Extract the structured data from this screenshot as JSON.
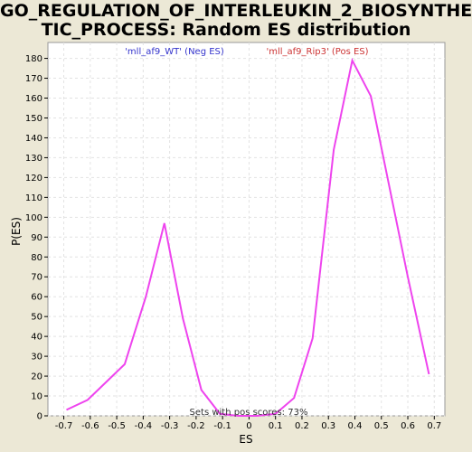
{
  "chart_data": {
    "type": "line",
    "title_line1": "GO_REGULATION_OF_INTERLEUKIN_2_BIOSYNTHE",
    "title_line2": "TIC_PROCESS: Random ES distribution",
    "xlabel": "ES",
    "ylabel": "P(ES)",
    "xlim": [
      -0.76,
      0.74
    ],
    "ylim": [
      0,
      188
    ],
    "xticks": [
      -0.7,
      -0.6,
      -0.5,
      -0.4,
      -0.3,
      -0.2,
      -0.1,
      0,
      0.1,
      0.2,
      0.3,
      0.4,
      0.5,
      0.6,
      0.7
    ],
    "yticks": [
      0,
      10,
      20,
      30,
      40,
      50,
      60,
      70,
      80,
      90,
      100,
      110,
      120,
      130,
      140,
      150,
      160,
      170,
      180
    ],
    "grid": true,
    "legend": {
      "neg": "'mll_af9_WT' (Neg ES)",
      "pos": "'mll_af9_Rip3' (Pos ES)",
      "neg_color": "#3333cc",
      "pos_color": "#cc3333"
    },
    "annotation": "Sets with pos scores: 73%",
    "line_color": "#ee44ee",
    "series": [
      {
        "x": [
          -0.69,
          -0.61,
          -0.47,
          -0.39,
          -0.32,
          -0.25,
          -0.18,
          -0.11,
          -0.04,
          0.03,
          0.1,
          0.17,
          0.24,
          0.32,
          0.39,
          0.46,
          0.6,
          0.68
        ],
        "y": [
          3,
          8,
          26,
          60,
          97,
          49,
          13,
          1,
          0,
          0,
          1,
          9,
          39,
          134,
          179,
          161,
          70,
          21
        ]
      }
    ]
  }
}
